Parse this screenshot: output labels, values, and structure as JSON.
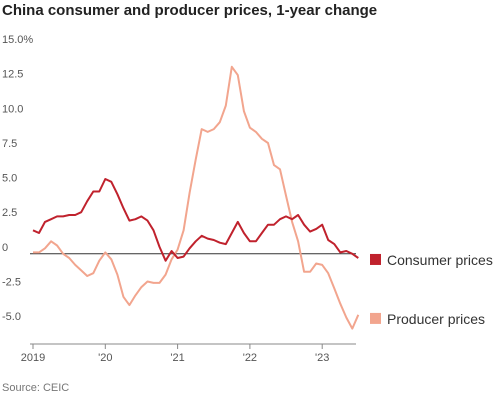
{
  "chart_data": {
    "type": "line",
    "title": "China consumer and producer prices, 1-year change",
    "source": "Source: CEIC",
    "xlabel": "",
    "ylabel": "",
    "ylim": [
      -5.5,
      15
    ],
    "y_ticks": [
      15.0,
      12.5,
      10.0,
      7.5,
      5.0,
      2.5,
      0,
      -2.5,
      -5.0
    ],
    "y_tick_labels": [
      "15.0%",
      "12.5",
      "10.0",
      "7.5",
      "5.0",
      "2.5",
      "0",
      "-2.5",
      "-5.0"
    ],
    "x_ticks": [
      2019,
      2020,
      2021,
      2022,
      2023
    ],
    "x_tick_labels": [
      "2019",
      "'20",
      "'21",
      "'22",
      "'23"
    ],
    "x_unit": "year (monthly observations, Jan 2019 – Jul 2023)",
    "grid": false,
    "legend": "right",
    "series": [
      {
        "name": "Consumer prices",
        "color": "#c0222d",
        "values": [
          1.7,
          1.5,
          2.3,
          2.5,
          2.7,
          2.7,
          2.8,
          2.8,
          3.0,
          3.8,
          4.5,
          4.5,
          5.4,
          5.2,
          4.3,
          3.3,
          2.4,
          2.5,
          2.7,
          2.4,
          1.7,
          0.5,
          -0.5,
          0.2,
          -0.3,
          -0.2,
          0.4,
          0.9,
          1.3,
          1.1,
          1.0,
          0.8,
          0.7,
          1.5,
          2.3,
          1.5,
          0.9,
          0.9,
          1.5,
          2.1,
          2.1,
          2.5,
          2.7,
          2.5,
          2.8,
          2.1,
          1.6,
          1.8,
          2.1,
          1.0,
          0.7,
          0.1,
          0.2,
          0.0,
          -0.3
        ]
      },
      {
        "name": "Producer prices",
        "color": "#f2a58e",
        "values": [
          0.1,
          0.1,
          0.4,
          0.9,
          0.6,
          0.0,
          -0.3,
          -0.8,
          -1.2,
          -1.6,
          -1.4,
          -0.5,
          0.1,
          -0.4,
          -1.5,
          -3.1,
          -3.7,
          -3.0,
          -2.4,
          -2.0,
          -2.1,
          -2.1,
          -1.5,
          -0.4,
          0.3,
          1.7,
          4.4,
          6.8,
          9.0,
          8.8,
          9.0,
          9.5,
          10.7,
          13.5,
          12.9,
          10.3,
          9.1,
          8.8,
          8.3,
          8.0,
          6.4,
          6.1,
          4.2,
          2.3,
          0.9,
          -1.3,
          -1.3,
          -0.7,
          -0.8,
          -1.4,
          -2.5,
          -3.6,
          -4.6,
          -5.4,
          -4.4
        ]
      }
    ]
  }
}
